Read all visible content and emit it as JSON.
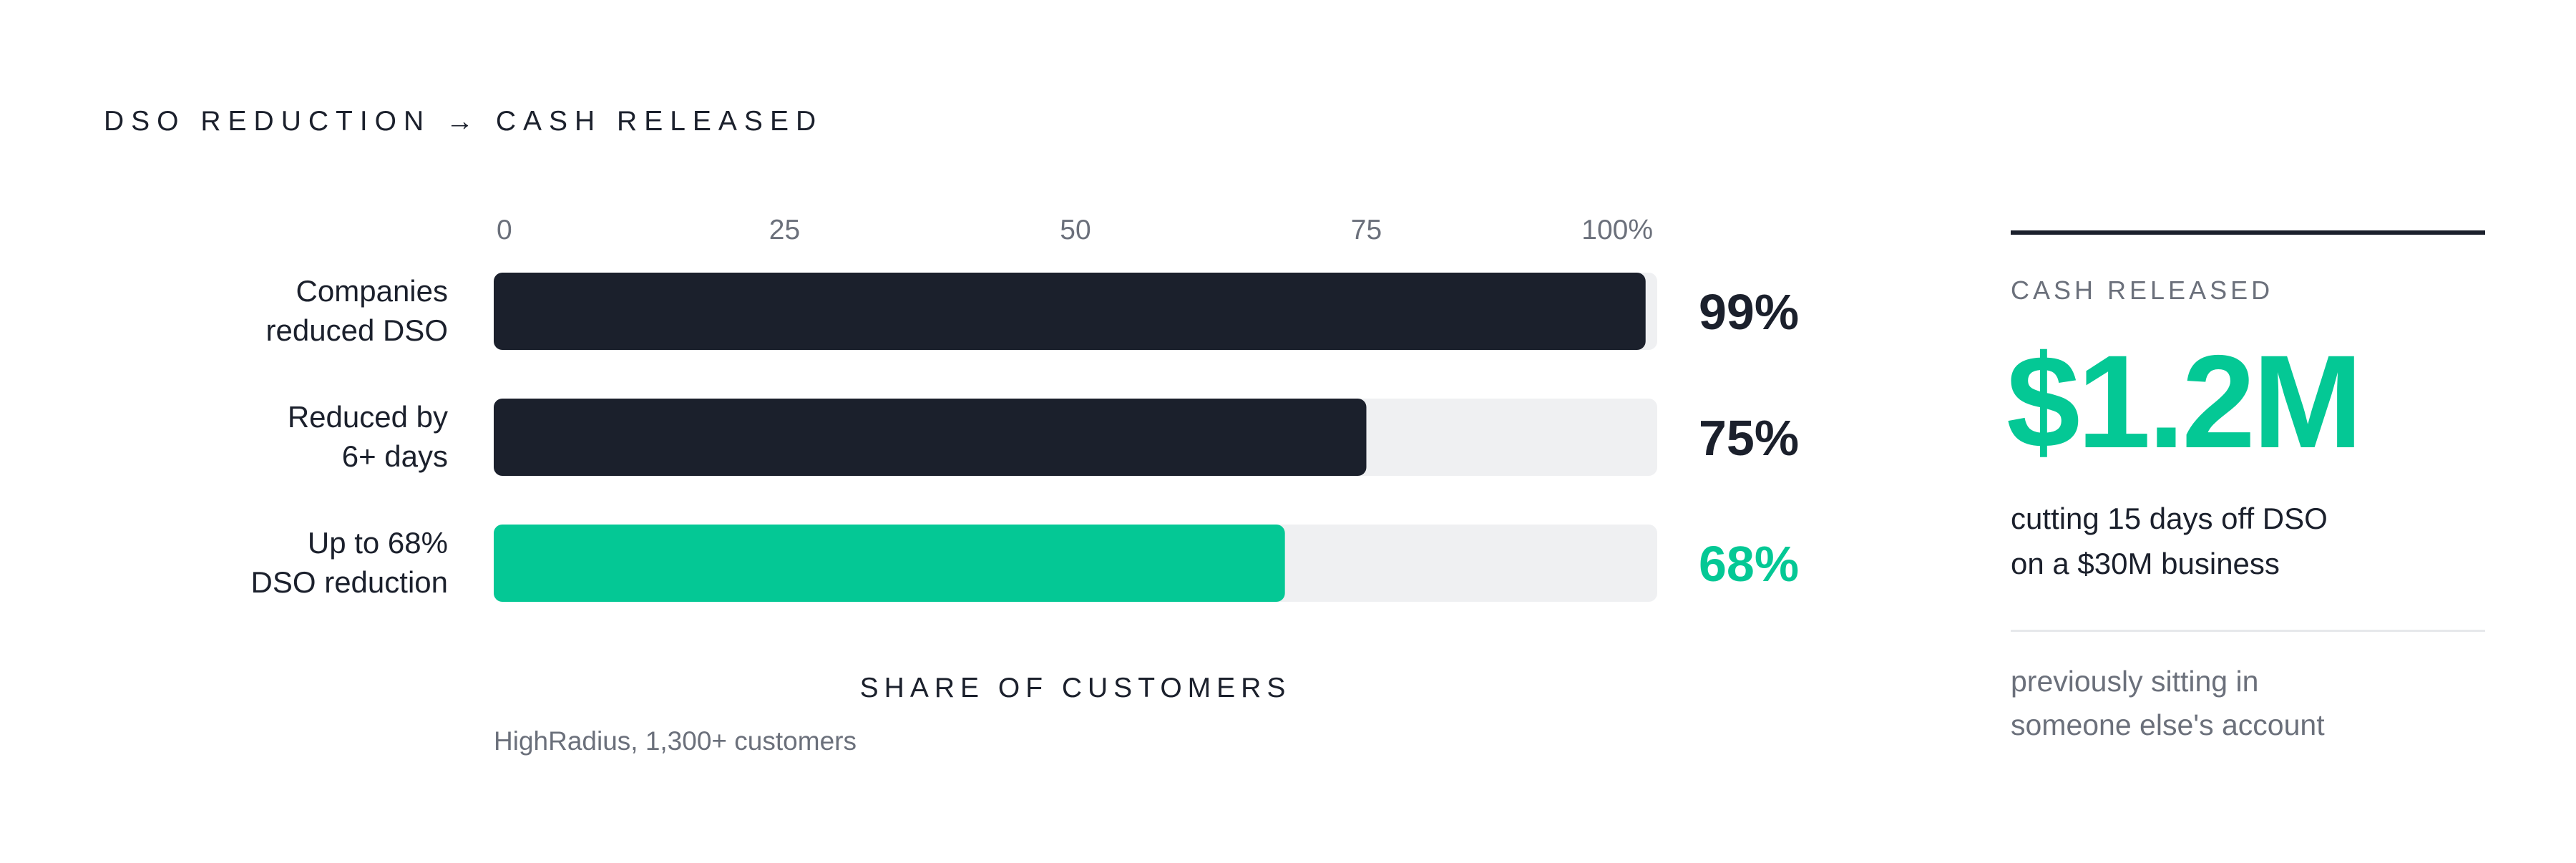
{
  "title": "DSO REDUCTION → CASH RELEASED",
  "chart_data": {
    "type": "bar",
    "orientation": "horizontal",
    "categories": [
      [
        "Companies",
        "reduced DSO"
      ],
      [
        "Reduced by",
        "6+ days"
      ],
      [
        "Up to 68%",
        "DSO reduction"
      ]
    ],
    "values": [
      99,
      75,
      68
    ],
    "value_labels": [
      "99%",
      "75%",
      "68%"
    ],
    "xlim": [
      0,
      100
    ],
    "x_ticks": [
      "0",
      "25",
      "50",
      "75",
      "100%"
    ],
    "xlabel": "SHARE OF CUSTOMERS",
    "source": "HighRadius, 1,300+ customers",
    "grid": false,
    "legend": "none",
    "colors": {
      "bar": "#1b202c",
      "highlight_bar": "#04c895",
      "track": "#eff0f2",
      "tick_text": "#6b707b",
      "highlight_index": 2
    }
  },
  "side": {
    "label": "CASH RELEASED",
    "big_value": "$1.2M",
    "description_lines": [
      "cutting 15 days off DSO",
      "on a $30M business"
    ],
    "note_lines": [
      "previously sitting in",
      "someone else's account"
    ]
  }
}
